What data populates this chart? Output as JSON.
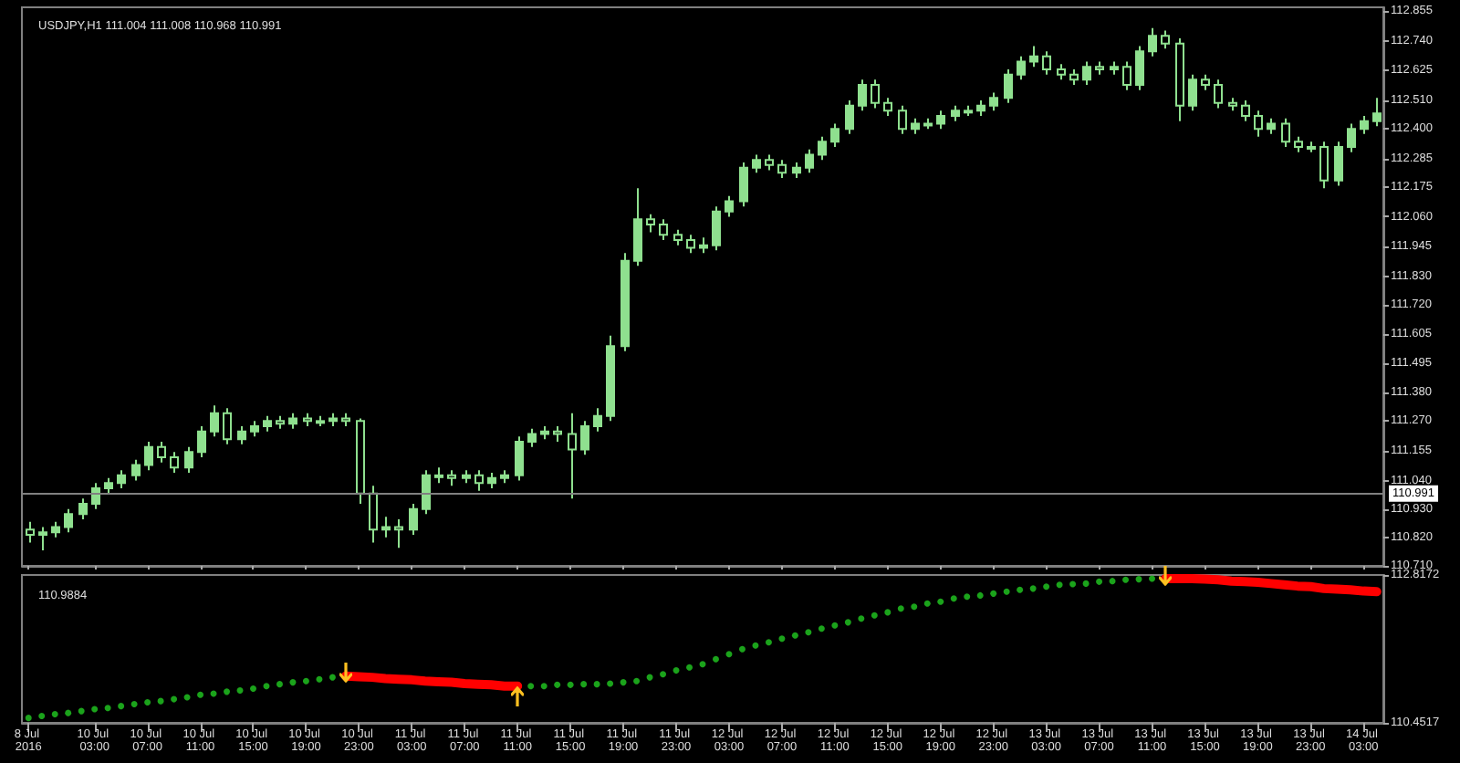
{
  "chart_data": [
    {
      "type": "candlestick",
      "title": "USDJPY,H1 111.004 111.008 110.968 110.991",
      "color": "#8fe08f",
      "tick_labels": "y",
      "grid": false,
      "categories": [
        "8 Jul 2016",
        null,
        null,
        null,
        null,
        "10 Jul 03:00",
        null,
        null,
        null,
        "10 Jul 07:00",
        null,
        null,
        null,
        "10 Jul 11:00",
        null,
        null,
        null,
        "10 Jul 15:00",
        null,
        null,
        null,
        "10 Jul 19:00",
        null,
        null,
        null,
        "10 Jul 23:00",
        null,
        null,
        null,
        "11 Jul 03:00",
        null,
        null,
        null,
        "11 Jul 07:00",
        null,
        null,
        null,
        "11 Jul 11:00",
        null,
        null,
        null,
        "11 Jul 15:00",
        null,
        null,
        null,
        "11 Jul 19:00",
        null,
        null,
        null,
        "11 Jul 23:00",
        null,
        null,
        null,
        "12 Jul 03:00",
        null,
        null,
        null,
        "12 Jul 07:00",
        null,
        null,
        null,
        "12 Jul 11:00",
        null,
        null,
        null,
        "12 Jul 15:00",
        null,
        null,
        null,
        "12 Jul 19:00",
        null,
        null,
        null,
        "12 Jul 23:00",
        null,
        null,
        null,
        "13 Jul 03:00",
        null,
        null,
        null,
        "13 Jul 07:00",
        null,
        null,
        null,
        "13 Jul 11:00",
        null,
        null,
        null,
        "13 Jul 15:00",
        null,
        null,
        null,
        "13 Jul 19:00",
        null,
        null,
        null,
        "13 Jul 23:00",
        null,
        null,
        null,
        "14 Jul 03:00",
        null
      ],
      "ohlc": [
        [
          110.85,
          110.88,
          110.8,
          110.83
        ],
        [
          110.83,
          110.86,
          110.77,
          110.84
        ],
        [
          110.84,
          110.88,
          110.82,
          110.86
        ],
        [
          110.86,
          110.93,
          110.84,
          110.91
        ],
        [
          110.91,
          110.97,
          110.89,
          110.95
        ],
        [
          110.95,
          111.03,
          110.93,
          111.01
        ],
        [
          111.01,
          111.05,
          110.99,
          111.03
        ],
        [
          111.03,
          111.08,
          111.01,
          111.06
        ],
        [
          111.06,
          111.12,
          111.04,
          111.1
        ],
        [
          111.1,
          111.19,
          111.08,
          111.17
        ],
        [
          111.17,
          111.19,
          111.11,
          111.13
        ],
        [
          111.13,
          111.15,
          111.07,
          111.09
        ],
        [
          111.09,
          111.17,
          111.07,
          111.15
        ],
        [
          111.15,
          111.25,
          111.13,
          111.23
        ],
        [
          111.23,
          111.33,
          111.21,
          111.3
        ],
        [
          111.3,
          111.32,
          111.18,
          111.2
        ],
        [
          111.2,
          111.25,
          111.18,
          111.23
        ],
        [
          111.23,
          111.27,
          111.21,
          111.25
        ],
        [
          111.25,
          111.29,
          111.23,
          111.27
        ],
        [
          111.27,
          111.29,
          111.24,
          111.26
        ],
        [
          111.26,
          111.3,
          111.24,
          111.28
        ],
        [
          111.28,
          111.3,
          111.25,
          111.27
        ],
        [
          111.27,
          111.29,
          111.25,
          111.27
        ],
        [
          111.27,
          111.3,
          111.25,
          111.28
        ],
        [
          111.28,
          111.3,
          111.25,
          111.27
        ],
        [
          111.27,
          111.28,
          110.95,
          110.99
        ],
        [
          110.99,
          111.02,
          110.8,
          110.85
        ],
        [
          110.85,
          110.9,
          110.82,
          110.86
        ],
        [
          110.86,
          110.89,
          110.78,
          110.85
        ],
        [
          110.85,
          110.95,
          110.83,
          110.93
        ],
        [
          110.93,
          111.08,
          110.91,
          111.06
        ],
        [
          111.06,
          111.09,
          111.03,
          111.06
        ],
        [
          111.06,
          111.08,
          111.02,
          111.05
        ],
        [
          111.05,
          111.08,
          111.03,
          111.06
        ],
        [
          111.06,
          111.08,
          111.0,
          111.03
        ],
        [
          111.03,
          111.07,
          111.01,
          111.05
        ],
        [
          111.05,
          111.08,
          111.03,
          111.06
        ],
        [
          111.06,
          111.21,
          111.04,
          111.19
        ],
        [
          111.19,
          111.24,
          111.17,
          111.22
        ],
        [
          111.22,
          111.25,
          111.2,
          111.23
        ],
        [
          111.23,
          111.25,
          111.19,
          111.22
        ],
        [
          111.22,
          111.3,
          110.97,
          111.16
        ],
        [
          111.16,
          111.27,
          111.14,
          111.25
        ],
        [
          111.25,
          111.32,
          111.23,
          111.29
        ],
        [
          111.29,
          111.6,
          111.27,
          111.56
        ],
        [
          111.56,
          111.92,
          111.54,
          111.89
        ],
        [
          111.89,
          112.17,
          111.87,
          112.05
        ],
        [
          112.05,
          112.07,
          112.0,
          112.03
        ],
        [
          112.03,
          112.05,
          111.97,
          111.99
        ],
        [
          111.99,
          112.01,
          111.95,
          111.97
        ],
        [
          111.97,
          111.99,
          111.92,
          111.94
        ],
        [
          111.94,
          111.98,
          111.92,
          111.95
        ],
        [
          111.95,
          112.1,
          111.93,
          112.08
        ],
        [
          112.08,
          112.14,
          112.06,
          112.12
        ],
        [
          112.12,
          112.27,
          112.1,
          112.25
        ],
        [
          112.25,
          112.3,
          112.23,
          112.28
        ],
        [
          112.28,
          112.3,
          112.24,
          112.26
        ],
        [
          112.26,
          112.28,
          112.21,
          112.23
        ],
        [
          112.23,
          112.27,
          112.21,
          112.25
        ],
        [
          112.25,
          112.32,
          112.23,
          112.3
        ],
        [
          112.3,
          112.37,
          112.28,
          112.35
        ],
        [
          112.35,
          112.42,
          112.33,
          112.4
        ],
        [
          112.4,
          112.51,
          112.38,
          112.49
        ],
        [
          112.49,
          112.59,
          112.47,
          112.57
        ],
        [
          112.57,
          112.59,
          112.48,
          112.5
        ],
        [
          112.5,
          112.52,
          112.45,
          112.47
        ],
        [
          112.47,
          112.49,
          112.38,
          112.4
        ],
        [
          112.4,
          112.44,
          112.38,
          112.42
        ],
        [
          112.42,
          112.44,
          112.4,
          112.42
        ],
        [
          112.42,
          112.47,
          112.4,
          112.45
        ],
        [
          112.45,
          112.49,
          112.43,
          112.47
        ],
        [
          112.47,
          112.49,
          112.45,
          112.47
        ],
        [
          112.47,
          112.51,
          112.45,
          112.49
        ],
        [
          112.49,
          112.54,
          112.47,
          112.52
        ],
        [
          112.52,
          112.63,
          112.5,
          112.61
        ],
        [
          112.61,
          112.68,
          112.59,
          112.66
        ],
        [
          112.66,
          112.72,
          112.64,
          112.68
        ],
        [
          112.68,
          112.7,
          112.61,
          112.63
        ],
        [
          112.63,
          112.65,
          112.59,
          112.61
        ],
        [
          112.61,
          112.63,
          112.57,
          112.59
        ],
        [
          112.59,
          112.66,
          112.57,
          112.64
        ],
        [
          112.64,
          112.66,
          112.61,
          112.63
        ],
        [
          112.63,
          112.66,
          112.61,
          112.64
        ],
        [
          112.64,
          112.66,
          112.55,
          112.57
        ],
        [
          112.57,
          112.72,
          112.55,
          112.7
        ],
        [
          112.7,
          112.79,
          112.68,
          112.76
        ],
        [
          112.76,
          112.78,
          112.71,
          112.73
        ],
        [
          112.73,
          112.75,
          112.43,
          112.49
        ],
        [
          112.49,
          112.61,
          112.47,
          112.59
        ],
        [
          112.59,
          112.61,
          112.55,
          112.57
        ],
        [
          112.57,
          112.59,
          112.48,
          112.5
        ],
        [
          112.5,
          112.52,
          112.47,
          112.49
        ],
        [
          112.49,
          112.51,
          112.43,
          112.45
        ],
        [
          112.45,
          112.47,
          112.37,
          112.4
        ],
        [
          112.4,
          112.44,
          112.38,
          112.42
        ],
        [
          112.42,
          112.44,
          112.33,
          112.35
        ],
        [
          112.35,
          112.37,
          112.31,
          112.33
        ],
        [
          112.33,
          112.35,
          112.31,
          112.33
        ],
        [
          112.33,
          112.35,
          112.17,
          112.2
        ],
        [
          112.2,
          112.35,
          112.18,
          112.33
        ],
        [
          112.33,
          112.42,
          112.31,
          112.4
        ],
        [
          112.4,
          112.45,
          112.38,
          112.43
        ],
        [
          112.43,
          112.52,
          112.41,
          112.46
        ]
      ],
      "ylim": [
        110.71,
        112.87
      ],
      "yticks": [
        {
          "value": 110.71,
          "label": "110.710"
        },
        {
          "value": 110.82,
          "label": "110.820"
        },
        {
          "value": 110.93,
          "label": "110.930"
        },
        {
          "value": 111.04,
          "label": "111.040"
        },
        111.155,
        {
          "value": 111.27,
          "label": "111.270"
        },
        {
          "value": 111.38,
          "label": "111.380"
        },
        111.495,
        111.605,
        {
          "value": 111.72,
          "label": "111.720"
        },
        {
          "value": 111.83,
          "label": "111.830"
        },
        111.945,
        {
          "value": 112.06,
          "label": "112.060"
        },
        112.175,
        112.285,
        {
          "value": 112.4,
          "label": "112.400"
        },
        {
          "value": 112.51,
          "label": "112.510"
        },
        112.625,
        {
          "value": 112.74,
          "label": "112.740"
        },
        112.855
      ],
      "ref_lines": [
        {
          "axis": "y",
          "value": 110.991,
          "label": "110.991",
          "color": "#808080"
        }
      ]
    },
    {
      "type": "line",
      "title": "110.9884",
      "grid": false,
      "categories": [
        "8 Jul 2016",
        null,
        null,
        null,
        null,
        "10 Jul 03:00",
        null,
        null,
        null,
        "10 Jul 07:00",
        null,
        null,
        null,
        "10 Jul 11:00",
        null,
        null,
        null,
        "10 Jul 15:00",
        null,
        null,
        null,
        "10 Jul 19:00",
        null,
        null,
        null,
        "10 Jul 23:00",
        null,
        null,
        null,
        "11 Jul 03:00",
        null,
        null,
        null,
        "11 Jul 07:00",
        null,
        null,
        null,
        "11 Jul 11:00",
        null,
        null,
        null,
        "11 Jul 15:00",
        null,
        null,
        null,
        "11 Jul 19:00",
        null,
        null,
        null,
        "11 Jul 23:00",
        null,
        null,
        null,
        "12 Jul 03:00",
        null,
        null,
        null,
        "12 Jul 07:00",
        null,
        null,
        null,
        "12 Jul 11:00",
        null,
        null,
        null,
        "12 Jul 15:00",
        null,
        null,
        null,
        "12 Jul 19:00",
        null,
        null,
        null,
        "12 Jul 23:00",
        null,
        null,
        null,
        "13 Jul 03:00",
        null,
        null,
        null,
        "13 Jul 07:00",
        null,
        null,
        null,
        "13 Jul 11:00",
        null,
        null,
        null,
        "13 Jul 15:00",
        null,
        null,
        null,
        "13 Jul 19:00",
        null,
        null,
        null,
        "13 Jul 23:00",
        null,
        null,
        null,
        "14 Jul 03:00",
        null
      ],
      "series": [
        {
          "type": "scatter",
          "color": "#22cc22",
          "marker": "circle",
          "values": [
            110.53,
            110.56,
            110.59,
            110.61,
            110.64,
            110.67,
            110.69,
            110.72,
            110.75,
            110.78,
            110.8,
            110.83,
            110.86,
            110.9,
            110.92,
            110.95,
            110.97,
            111.0,
            111.04,
            111.07,
            111.1,
            111.12,
            111.15,
            111.18,
            null,
            null,
            null,
            null,
            null,
            null,
            null,
            null,
            null,
            null,
            null,
            null,
            null,
            null,
            111.04,
            111.04,
            111.06,
            111.06,
            111.07,
            111.07,
            111.08,
            111.1,
            111.12,
            111.18,
            111.23,
            111.29,
            111.34,
            111.39,
            111.47,
            111.55,
            111.63,
            111.69,
            111.74,
            111.8,
            111.85,
            111.9,
            111.96,
            112.01,
            112.06,
            112.12,
            112.17,
            112.22,
            112.28,
            112.31,
            112.36,
            112.39,
            112.44,
            112.47,
            112.49,
            112.52,
            112.55,
            112.58,
            112.6,
            112.63,
            112.66,
            112.67,
            112.68,
            112.71,
            112.72,
            112.74,
            112.75,
            112.76,
            null,
            null,
            null,
            null,
            null,
            null,
            null,
            null,
            null,
            null,
            null,
            null,
            null,
            null,
            null,
            null,
            null
          ]
        },
        {
          "type": "line",
          "color": "#ff0000",
          "values": [
            null,
            null,
            null,
            null,
            null,
            null,
            null,
            null,
            null,
            null,
            null,
            null,
            null,
            null,
            null,
            null,
            null,
            null,
            null,
            null,
            null,
            null,
            null,
            null,
            111.2,
            111.19,
            111.18,
            111.16,
            111.15,
            111.14,
            111.12,
            111.11,
            111.1,
            111.08,
            111.07,
            111.06,
            111.04,
            111.04,
            null,
            null,
            null,
            null,
            null,
            null,
            null,
            null,
            null,
            null,
            null,
            null,
            null,
            null,
            null,
            null,
            null,
            null,
            null,
            null,
            null,
            null,
            null,
            null,
            null,
            null,
            null,
            null,
            null,
            null,
            null,
            null,
            null,
            null,
            null,
            null,
            null,
            null,
            null,
            null,
            null,
            null,
            null,
            null,
            null,
            null,
            null,
            null,
            112.76,
            112.76,
            112.76,
            112.75,
            112.74,
            112.72,
            112.71,
            112.7,
            112.68,
            112.66,
            112.64,
            112.63,
            112.6,
            112.59,
            112.58,
            112.56,
            112.55
          ]
        }
      ],
      "ylim": [
        110.4517,
        112.8172
      ],
      "yticks": [
        110.4517,
        112.8172
      ]
    }
  ]
}
